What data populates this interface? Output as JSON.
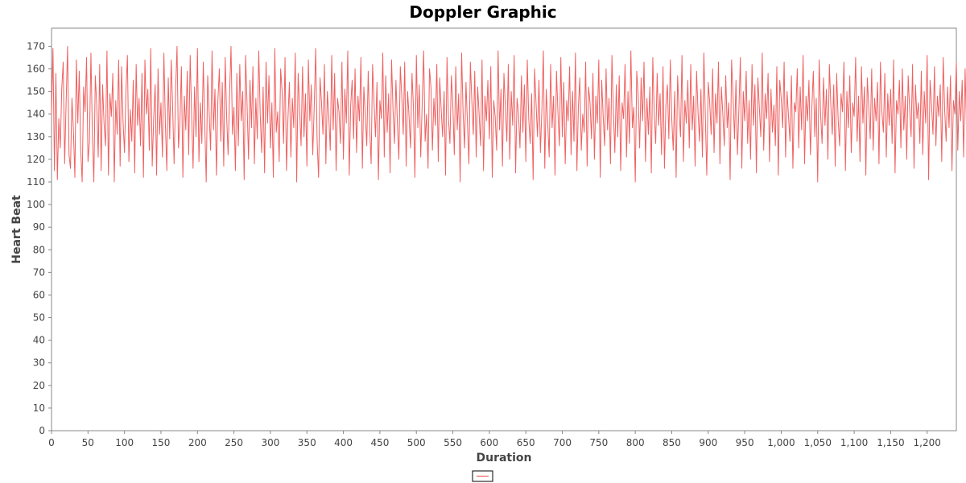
{
  "chart_data": {
    "type": "line",
    "title": "Doppler Graphic",
    "xlabel": "Duration",
    "ylabel": "Heart Beat",
    "xlim": [
      0,
      1240
    ],
    "ylim": [
      0,
      178
    ],
    "x_ticks": [
      0,
      50,
      100,
      150,
      200,
      250,
      300,
      350,
      400,
      450,
      500,
      550,
      600,
      650,
      700,
      750,
      800,
      850,
      900,
      950,
      1000,
      1050,
      1100,
      1150,
      1200
    ],
    "x_tick_labels": [
      "0",
      "50",
      "100",
      "150",
      "200",
      "250",
      "300",
      "350",
      "400",
      "450",
      "500",
      "550",
      "600",
      "650",
      "700",
      "750",
      "800",
      "850",
      "900",
      "950",
      "1,000",
      "1,050",
      "1,100",
      "1,150",
      "1,200"
    ],
    "y_ticks": [
      0,
      10,
      20,
      30,
      40,
      50,
      60,
      70,
      80,
      90,
      100,
      110,
      120,
      130,
      140,
      150,
      160,
      170
    ],
    "y_tick_labels": [
      "0",
      "10",
      "20",
      "30",
      "40",
      "50",
      "60",
      "70",
      "80",
      "90",
      "100",
      "110",
      "120",
      "130",
      "140",
      "150",
      "160",
      "170"
    ],
    "grid": false,
    "legend_position": "bottom-center",
    "series": [
      {
        "color": "#f06060",
        "x_start": 0,
        "x_step": 2,
        "values": [
          140,
          169,
          115,
          158,
          111,
          138,
          125,
          151,
          163,
          118,
          145,
          170,
          122,
          116,
          147,
          133,
          112,
          164,
          136,
          159,
          124,
          110,
          152,
          141,
          165,
          119,
          128,
          167,
          131,
          110,
          157,
          144,
          121,
          162,
          115,
          153,
          136,
          126,
          168,
          113,
          149,
          139,
          158,
          110,
          146,
          131,
          164,
          117,
          161,
          137,
          123,
          150,
          166,
          119,
          142,
          128,
          155,
          114,
          162,
          135,
          147,
          126,
          158,
          112,
          164,
          140,
          151,
          124,
          169,
          117,
          138,
          153,
          113,
          160,
          131,
          145,
          121,
          167,
          136,
          115,
          156,
          129,
          164,
          143,
          118,
          150,
          170,
          125,
          137,
          161,
          112,
          148,
          133,
          159,
          122,
          166,
          140,
          116,
          152,
          130,
          169,
          119,
          145,
          127,
          163,
          136,
          110,
          157,
          141,
          124,
          168,
          133,
          151,
          113,
          146,
          160,
          128,
          154,
          117,
          165,
          139,
          122,
          149,
          170,
          131,
          143,
          115,
          158,
          126,
          162,
          137,
          150,
          111,
          166,
          144,
          120,
          155,
          134,
          161,
          118,
          147,
          129,
          168,
          140,
          123,
          152,
          114,
          163,
          136,
          157,
          125,
          145,
          112,
          169,
          132,
          141,
          119,
          160,
          150,
          127,
          165,
          115,
          138,
          154,
          121,
          147,
          134,
          167,
          110,
          158,
          142,
          126,
          161,
          130,
          149,
          117,
          164,
          137,
          153,
          122,
          143,
          169,
          128,
          112,
          156,
          145,
          131,
          162,
          118,
          150,
          139,
          124,
          166,
          133,
          158,
          115,
          147,
          141,
          127,
          163,
          120,
          151,
          136,
          168,
          113,
          144,
          155,
          129,
          160,
          123,
          148,
          137,
          165,
          116,
          152,
          140,
          126,
          159,
          134,
          118,
          162,
          145,
          130,
          154,
          111,
          146,
          138,
          167,
          121,
          157,
          132,
          149,
          114,
          164,
          142,
          127,
          155,
          136,
          120,
          161,
          148,
          131,
          163,
          117,
          150,
          139,
          125,
          158,
          143,
          112,
          166,
          134,
          153,
          121,
          145,
          168,
          128,
          140,
          116,
          160,
          152,
          124,
          147,
          135,
          162,
          119,
          156,
          142,
          130,
          150,
          113,
          165,
          138,
          127,
          157,
          144,
          122,
          161,
          133,
          149,
          110,
          167,
          141,
          125,
          154,
          136,
          118,
          163,
          146,
          131,
          159,
          121,
          152,
          140,
          126,
          164,
          115,
          148,
          137,
          155,
          129,
          161,
          112,
          146,
          139,
          124,
          168,
          133,
          151,
          117,
          158,
          143,
          128,
          162,
          120,
          150,
          135,
          166,
          114,
          147,
          140,
          125,
          157,
          132,
          153,
          119,
          164,
          138,
          127,
          149,
          111,
          160,
          145,
          130,
          155,
          123,
          142,
          168,
          116,
          151,
          136,
          121,
          162,
          134,
          148,
          113,
          159,
          141,
          126,
          165,
          130,
          154,
          118,
          146,
          137,
          161,
          122,
          150,
          128,
          167,
          115,
          143,
          156,
          124,
          140,
          132,
          163,
          117,
          152,
          145,
          129,
          158,
          120,
          148,
          136,
          164,
          112,
          155,
          139,
          126,
          160,
          133,
          147,
          118,
          166,
          141,
          123,
          153,
          130,
          157,
          115,
          145,
          138,
          162,
          121,
          150,
          127,
          168,
          134,
          143,
          110,
          159,
          148,
          125,
          156,
          137,
          163,
          119,
          147,
          131,
          152,
          114,
          165,
          140,
          127,
          158,
          135,
          149,
          122,
          161,
          116,
          144,
          153,
          129,
          164,
          138,
          124,
          150,
          112,
          157,
          142,
          130,
          166,
          119,
          146,
          136,
          155,
          125,
          162,
          133,
          148,
          117,
          159,
          141,
          128,
          151,
          121,
          167,
          139,
          113,
          154,
          145,
          131,
          160,
          123,
          149,
          136,
          163,
          118,
          152,
          140,
          126,
          157,
          134,
          145,
          111,
          164,
          148,
          129,
          155,
          122,
          142,
          165,
          116,
          150,
          137,
          159,
          127,
          146,
          120,
          162,
          135,
          153,
          114,
          156,
          143,
          130,
          167,
          124,
          149,
          138,
          158,
          119,
          151,
          132,
          144,
          126,
          161,
          113,
          155,
          147,
          134,
          163,
          121,
          150,
          139,
          128,
          157,
          116,
          145,
          141,
          160,
          125,
          152,
          133,
          166,
          118,
          148,
          137,
          155,
          122,
          143,
          159,
          130,
          147,
          110,
          164,
          140,
          127,
          156,
          135,
          151,
          120,
          162,
          144,
          131,
          153,
          117,
          158,
          138,
          126,
          149,
          141,
          163,
          115,
          150,
          134,
          157,
          123,
          145,
          139,
          165,
          128,
          148,
          119,
          161,
          136,
          152,
          113,
          156,
          143,
          129,
          160,
          124,
          147,
          137,
          154,
          118,
          163,
          141,
          132,
          158,
          121,
          149,
          135,
          151,
          127,
          164,
          114,
          146,
          140,
          155,
          125,
          160,
          133,
          148,
          120,
          157,
          142,
          130,
          162,
          116,
          153,
          138,
          145,
          127,
          159,
          122,
          150,
          136,
          166,
          111,
          155,
          144,
          131,
          161,
          126,
          148,
          139,
          153,
          119,
          165,
          142,
          128,
          152,
          134,
          157,
          115,
          146,
          140,
          163,
          124,
          150,
          137,
          155,
          121,
          160,
          132,
          147,
          117,
          162,
          145,
          129,
          151,
          138,
          156,
          123,
          144,
          140,
          160,
          113,
          153,
          135,
          148,
          127,
          163,
          118,
          149,
          141,
          157,
          126,
          152,
          134,
          161,
          120,
          146,
          139,
          154,
          128,
          158,
          116,
          151,
          143,
          130,
          164,
          122,
          147,
          137,
          155,
          125,
          160,
          133,
          148,
          114,
          162,
          141,
          129,
          153,
          136,
          157,
          119,
          150,
          145,
          128,
          163,
          121,
          147,
          138,
          156,
          124,
          152,
          131,
          159,
          117,
          148,
          142,
          135,
          161,
          126,
          150,
          139,
          154,
          113,
          158,
          144,
          130,
          165,
          120,
          149,
          137,
          153,
          127,
          160,
          134,
          146,
          118,
          157,
          141,
          129,
          163,
          123,
          151,
          139,
          155,
          115,
          149,
          143,
          132,
          159,
          125,
          147,
          136,
          162,
          119,
          153,
          140,
          128,
          156,
          131,
          150,
          121,
          161,
          138,
          146,
          116,
          158,
          144,
          127,
          164,
          124,
          148,
          135,
          154,
          120,
          160,
          141,
          129,
          152,
          137,
          157,
          114,
          150,
          145,
          131,
          163,
          122,
          148,
          139,
          156,
          126,
          161,
          133,
          147,
          117,
          155,
          142,
          130,
          159,
          123,
          151,
          138,
          165,
          112,
          153,
          144,
          128,
          160,
          125,
          149,
          136,
          157,
          119,
          162,
          140,
          131,
          154,
          121,
          147,
          139,
          166,
          115,
          151,
          143,
          127,
          158,
          134,
          150,
          120,
          163,
          137,
          145,
          124,
          160,
          129,
          154,
          113,
          157,
          142,
          135,
          162,
          118,
          150,
          140,
          156,
          126,
          149,
          132,
          161,
          121,
          153,
          138,
          146,
          127,
          159,
          116,
          152,
          144,
          130,
          164,
          123,
          148,
          137,
          157,
          125,
          160,
          134,
          150,
          119,
          155,
          141,
          129,
          163,
          122,
          147,
          139,
          154,
          114,
          161,
          143,
          131,
          158,
          126,
          150,
          136,
          165,
          117,
          152,
          140,
          128,
          156,
          133,
          148,
          121,
          162,
          138,
          145,
          124,
          159,
          130,
          153,
          111,
          157,
          144,
          134,
          163,
          120,
          149,
          139,
          155,
          127,
          160,
          132,
          146,
          118,
          164,
          142,
          129,
          152,
          135,
          158,
          123,
          150,
          137,
          161,
          115,
          147,
          143,
          130,
          156,
          125,
          151,
          139,
          163,
          119,
          154,
          136,
          147,
          128,
          162,
          121,
          149,
          141,
          157,
          126,
          153,
          133,
          160,
          114,
          150,
          145,
          131,
          164,
          123,
          148,
          138,
          155,
          127,
          161,
          135,
          146,
          118,
          157,
          142,
          130,
          163,
          122,
          151,
          137,
          154,
          116,
          160,
          144,
          129,
          152,
          134,
          158,
          124,
          149,
          140,
          162,
          120,
          155,
          136,
          147,
          128,
          164,
          113,
          150,
          143,
          132,
          157,
          125,
          152,
          139,
          161,
          119,
          148,
          141,
          154,
          127,
          163,
          134,
          150,
          117,
          158,
          145,
          131,
          162,
          123,
          147,
          138,
          156,
          126,
          151,
          133,
          160,
          115,
          153,
          142,
          130,
          166,
          121,
          149,
          137,
          157,
          124,
          161,
          139,
          146,
          118,
          155,
          143,
          128,
          163,
          122,
          150,
          136,
          158,
          127,
          152,
          134,
          162,
          116,
          148,
          144,
          131,
          159,
          125,
          154,
          138,
          147,
          120,
          164,
          141,
          129,
          156,
          133,
          150,
          123,
          160,
          137,
          145,
          114,
          158,
          142,
          132,
          165,
          119,
          151,
          139,
          155,
          126,
          162,
          135,
          148,
          121,
          157,
          143,
          130,
          161,
          117,
          149,
          140,
          154,
          128,
          163,
          124,
          152,
          136,
          159,
          118,
          147,
          144,
          131,
          162,
          125,
          150,
          137,
          157,
          122,
          155,
          134,
          147,
          116,
          160,
          141,
          129,
          164,
          123,
          151,
          139,
          156,
          127,
          153,
          132,
          158,
          120,
          149,
          143,
          130,
          162,
          115,
          152,
          138,
          147,
          126,
          161,
          135,
          155,
          119,
          157,
          142,
          128,
          163,
          122,
          150,
          136,
          140
        ]
      }
    ]
  }
}
